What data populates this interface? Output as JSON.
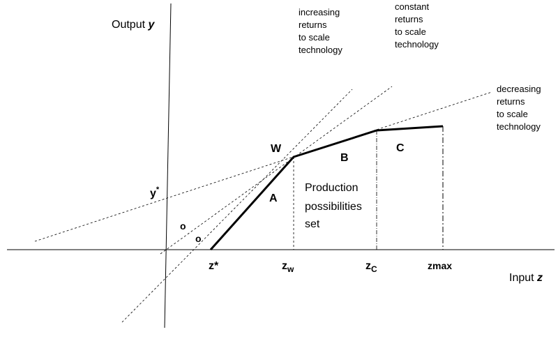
{
  "axes": {
    "y_label": {
      "text": "Output",
      "var": "y"
    },
    "x_label": {
      "text": "Input",
      "var": "z"
    }
  },
  "rays": {
    "increasing": [
      "increasing",
      "returns",
      "to scale",
      "technology"
    ],
    "constant": [
      "constant",
      "returns",
      "to scale",
      "technology"
    ],
    "decreasing": [
      "decreasing",
      "returns",
      "to scale",
      "technology"
    ]
  },
  "points": {
    "w": "W",
    "y_star": {
      "text": "y",
      "sup": "*"
    },
    "z_star": "z*",
    "z_w": {
      "text": "z",
      "sub": "w"
    },
    "z_c": {
      "text": "z",
      "sub": "C"
    },
    "z_max": "zmax"
  },
  "segments": {
    "a": "A",
    "b": "B",
    "c": "C"
  },
  "region": [
    "Production",
    "possibilities",
    "set"
  ],
  "markers": [
    "o",
    "o"
  ]
}
